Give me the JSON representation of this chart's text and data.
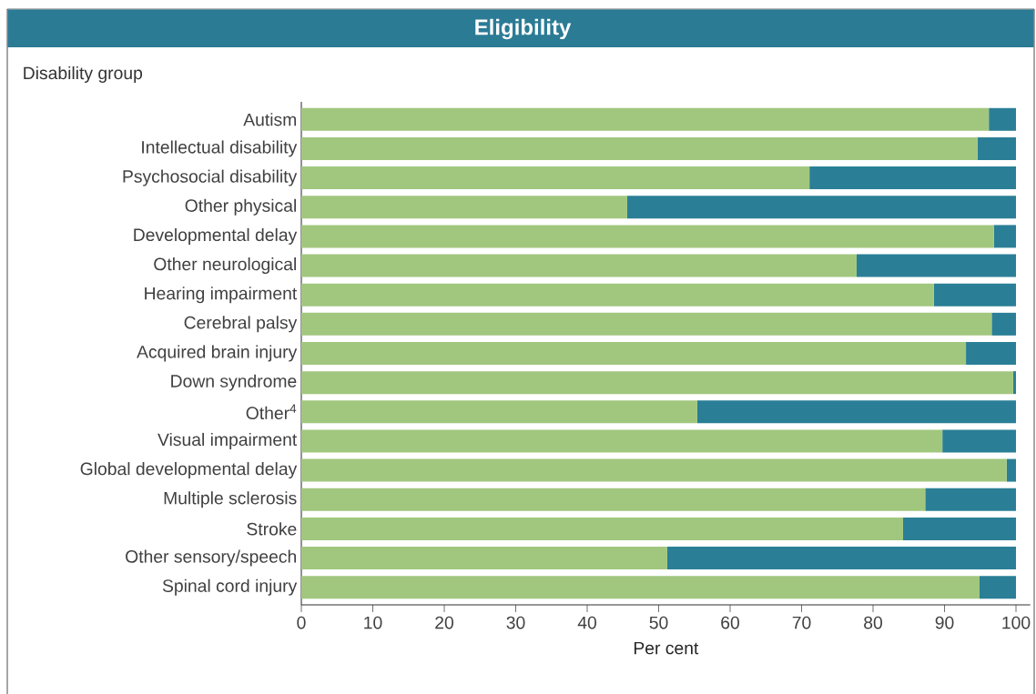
{
  "chart_data": {
    "type": "bar",
    "orientation": "horizontal",
    "stacked": true,
    "title": "Eligibility",
    "ylabel": "Disability group",
    "xlabel": "Per cent",
    "categories": [
      "Autism",
      "Intellectual disability",
      "Psychosocial disability",
      "Other physical",
      "Developmental delay",
      "Other neurological",
      "Hearing impairment",
      "Cerebral palsy",
      "Acquired brain injury",
      "Down syndrome",
      "Other$^{4}$",
      "Visual impairment",
      "Global developmental delay",
      "Multiple sclerosis",
      "Stroke",
      "Other sensory/speech",
      "Spinal cord injury"
    ],
    "series": [
      {
        "color": "#a1c77e",
        "values": [
          96.2,
          94.6,
          71.1,
          45.6,
          96.9,
          77.7,
          88.5,
          96.6,
          93.0,
          99.6,
          55.4,
          89.7,
          98.7,
          87.3,
          84.2,
          51.2,
          94.9
        ]
      },
      {
        "color": "#2a7f96",
        "values": [
          3.8,
          5.4,
          28.9,
          54.4,
          3.1,
          22.3,
          11.5,
          3.4,
          7.0,
          0.4,
          44.6,
          10.3,
          1.3,
          12.7,
          15.8,
          48.8,
          5.1
        ]
      }
    ],
    "xlim": [
      0,
      102
    ],
    "xticks": [
      0,
      10,
      20,
      30,
      40,
      50,
      60,
      70,
      80,
      90,
      100
    ]
  }
}
